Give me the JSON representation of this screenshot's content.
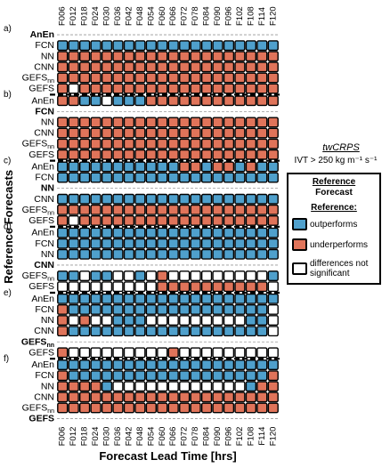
{
  "chart_data": {
    "type": "heatmap",
    "xlabel": "Forecast Lead Time [hrs]",
    "ylabel": "Reference Forecasts",
    "x_ticks": [
      "F006",
      "F012",
      "F018",
      "F024",
      "F030",
      "F036",
      "F042",
      "F048",
      "F054",
      "F060",
      "F066",
      "F072",
      "F078",
      "F084",
      "F090",
      "F096",
      "F102",
      "F108",
      "F114",
      "F120"
    ],
    "legend": {
      "metric": "twCRPS",
      "condition": "IVT > 250 kg m⁻¹ s⁻¹",
      "header_top": "Reference",
      "header_bottom": "Forecast",
      "subheader": "Reference:",
      "entries": [
        {
          "key": "B",
          "label": "outperforms",
          "color": "#4fa0cc"
        },
        {
          "key": "R",
          "label": "underperforms",
          "color": "#e0745a"
        },
        {
          "key": "W",
          "label": "differences not significant",
          "color": "#ffffff"
        }
      ]
    },
    "colors": {
      "B": "#4fa0cc",
      "R": "#e0745a",
      "W": "#ffffff",
      "S": "#ffffff"
    },
    "panels": [
      {
        "label": "a)",
        "forecast": "AnEn",
        "rows": [
          {
            "name": "AnEn",
            "bold": true,
            "self": true,
            "cells": "SSSSSSSSSSSSSSSSSSSS"
          },
          {
            "name": "FCN",
            "cells": "BBBBBBBBBBBBBBBBBBBB"
          },
          {
            "name": "NN",
            "cells": "RRRRRRRRRRRRRRRRRRRR"
          },
          {
            "name": "CNN",
            "cells": "RRRRRRRRRRRRRRRRRRRR"
          },
          {
            "name": "GEFS_nn",
            "cells": "RRRRRRRRRRRRRRRRRRRR"
          },
          {
            "name": "GEFS",
            "cells": "RWRRRRRRRRRRRRRRRRRR"
          }
        ]
      },
      {
        "label": "b)",
        "forecast": "FCN",
        "rows": [
          {
            "name": "AnEn",
            "cells": "RRBBWBBBRRRRRRRRRRRR"
          },
          {
            "name": "FCN",
            "bold": true,
            "self": true,
            "cells": "SSSSSSSSSSSSSSSSSSSS"
          },
          {
            "name": "NN",
            "cells": "RRRRRRRRRRRRRRRRRRRR"
          },
          {
            "name": "CNN",
            "cells": "RRRRRRRRRRRRRRRRRRRR"
          },
          {
            "name": "GEFS_nn",
            "cells": "RRRRRRRRRRRRRRRRRRRR"
          },
          {
            "name": "GEFS",
            "cells": "RRRRRRRRRRRRRRRRRRRR"
          }
        ]
      },
      {
        "label": "c)",
        "forecast": "NN",
        "rows": [
          {
            "name": "AnEn",
            "cells": "BBBBBBBBBBBRRBRRBRBB"
          },
          {
            "name": "FCN",
            "cells": "BBBBBBBBBBBBBBBBBBBB"
          },
          {
            "name": "NN",
            "bold": true,
            "self": true,
            "cells": "SSSSSSSSSSSSSSSSSSSS"
          },
          {
            "name": "CNN",
            "cells": "BBBBBBBBBBBBBBBBBBBB"
          },
          {
            "name": "GEFS_nn",
            "cells": "RRRRRRRRRRRRRRRRRRRR"
          },
          {
            "name": "GEFS",
            "cells": "RWRRRRRRRRRRRRRRRRRR"
          }
        ]
      },
      {
        "label": "d)",
        "forecast": "CNN",
        "rows": [
          {
            "name": "AnEn",
            "cells": "BBBBBBBBBBBBBBBBBBBB"
          },
          {
            "name": "FCN",
            "cells": "BBBBBBBBBBBBBBBBBBBB"
          },
          {
            "name": "NN",
            "cells": "BBBBBBBBBBBBBBBBBBBB"
          },
          {
            "name": "CNN",
            "bold": true,
            "self": true,
            "cells": "SSSSSSSSSSSSSSSSSSSS"
          },
          {
            "name": "GEFS_nn",
            "cells": "BBWBBWWBWRWWWWWWWWWB"
          },
          {
            "name": "GEFS",
            "cells": "WWWWWWWWWRRRRRRRRRRW"
          }
        ]
      },
      {
        "label": "e)",
        "forecast": "GEFS_nn",
        "rows": [
          {
            "name": "AnEn",
            "cells": "BBBBBBBBBBBBBBBBBBBB"
          },
          {
            "name": "FCN",
            "cells": "RBBBBBBBBBBBBBBBBBBW"
          },
          {
            "name": "NN",
            "cells": "RWRWWBBBWWWWWWWWWBBW"
          },
          {
            "name": "CNN",
            "cells": "RBBBBBBBBBBBBBBBBBBW"
          },
          {
            "name": "GEFS_nn",
            "bold": true,
            "self": true,
            "cells": "SSSSSSSSSSSSSSSSSSSS"
          },
          {
            "name": "GEFS",
            "cells": "RWWWWWWWWWRWWWWWWWWW"
          }
        ]
      },
      {
        "label": "f)",
        "forecast": "GEFS",
        "rows": [
          {
            "name": "AnEn",
            "cells": "BBBBBBBBBBBBBBBBBBBB"
          },
          {
            "name": "FCN",
            "cells": "RBBBBBBBBBBBBBBBBBBR"
          },
          {
            "name": "NN",
            "cells": "RRRRBWWWWWWWWWWWWBRR"
          },
          {
            "name": "CNN",
            "cells": "RRRRRRRRRRRRRRRRRRRR"
          },
          {
            "name": "GEFS_nn",
            "cells": "RRRRRRRRRRRRRRRRRRRR"
          },
          {
            "name": "GEFS",
            "bold": true,
            "self": true,
            "cells": "SSSSSSSSSSSSSSSSSSSS"
          }
        ]
      }
    ]
  }
}
